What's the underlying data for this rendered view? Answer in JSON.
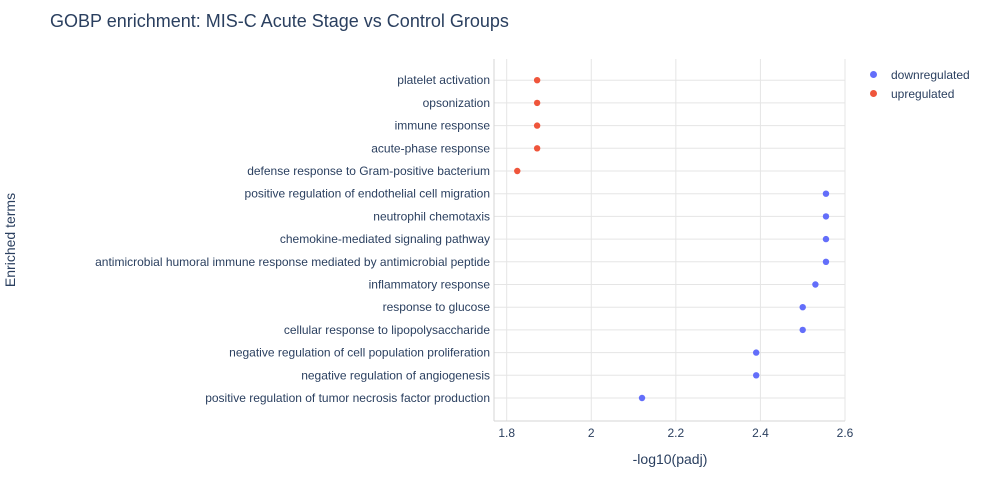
{
  "chart_data": {
    "type": "scatter",
    "title": "GOBP enrichment: MIS-C Acute Stage vs Control Groups",
    "xlabel": "-log10(padj)",
    "ylabel": "Enriched terms",
    "xlim": [
      1.77,
      2.6
    ],
    "xticks": [
      1.8,
      2,
      2.2,
      2.4,
      2.6
    ],
    "xtick_labels": [
      "1.8",
      "2",
      "2.2",
      "2.4",
      "2.6"
    ],
    "grid": true,
    "legend_position": "top-right",
    "categories": [
      "positive regulation of tumor necrosis factor production",
      "negative regulation of angiogenesis",
      "negative regulation of cell population proliferation",
      "cellular response to lipopolysaccharide",
      "response to glucose",
      "inflammatory response",
      "antimicrobial humoral immune response mediated by antimicrobial peptide",
      "chemokine-mediated signaling pathway",
      "neutrophil chemotaxis",
      "positive regulation of endothelial cell migration",
      "defense response to Gram-positive bacterium",
      "acute-phase response",
      "immune response",
      "opsonization",
      "platelet activation"
    ],
    "series": [
      {
        "name": "downregulated",
        "color": "#636efa",
        "points": [
          {
            "term": "positive regulation of tumor necrosis factor production",
            "x": 2.12
          },
          {
            "term": "negative regulation of angiogenesis",
            "x": 2.39
          },
          {
            "term": "negative regulation of cell population proliferation",
            "x": 2.39
          },
          {
            "term": "cellular response to lipopolysaccharide",
            "x": 2.5
          },
          {
            "term": "response to glucose",
            "x": 2.5
          },
          {
            "term": "inflammatory response",
            "x": 2.53
          },
          {
            "term": "antimicrobial humoral immune response mediated by antimicrobial peptide",
            "x": 2.555
          },
          {
            "term": "chemokine-mediated signaling pathway",
            "x": 2.555
          },
          {
            "term": "neutrophil chemotaxis",
            "x": 2.555
          },
          {
            "term": "positive regulation of endothelial cell migration",
            "x": 2.555
          }
        ]
      },
      {
        "name": "upregulated",
        "color": "#ef553b",
        "points": [
          {
            "term": "defense response to Gram-positive bacterium",
            "x": 1.825
          },
          {
            "term": "acute-phase response",
            "x": 1.872
          },
          {
            "term": "immune response",
            "x": 1.872
          },
          {
            "term": "opsonization",
            "x": 1.872
          },
          {
            "term": "platelet activation",
            "x": 1.872
          }
        ]
      }
    ]
  }
}
